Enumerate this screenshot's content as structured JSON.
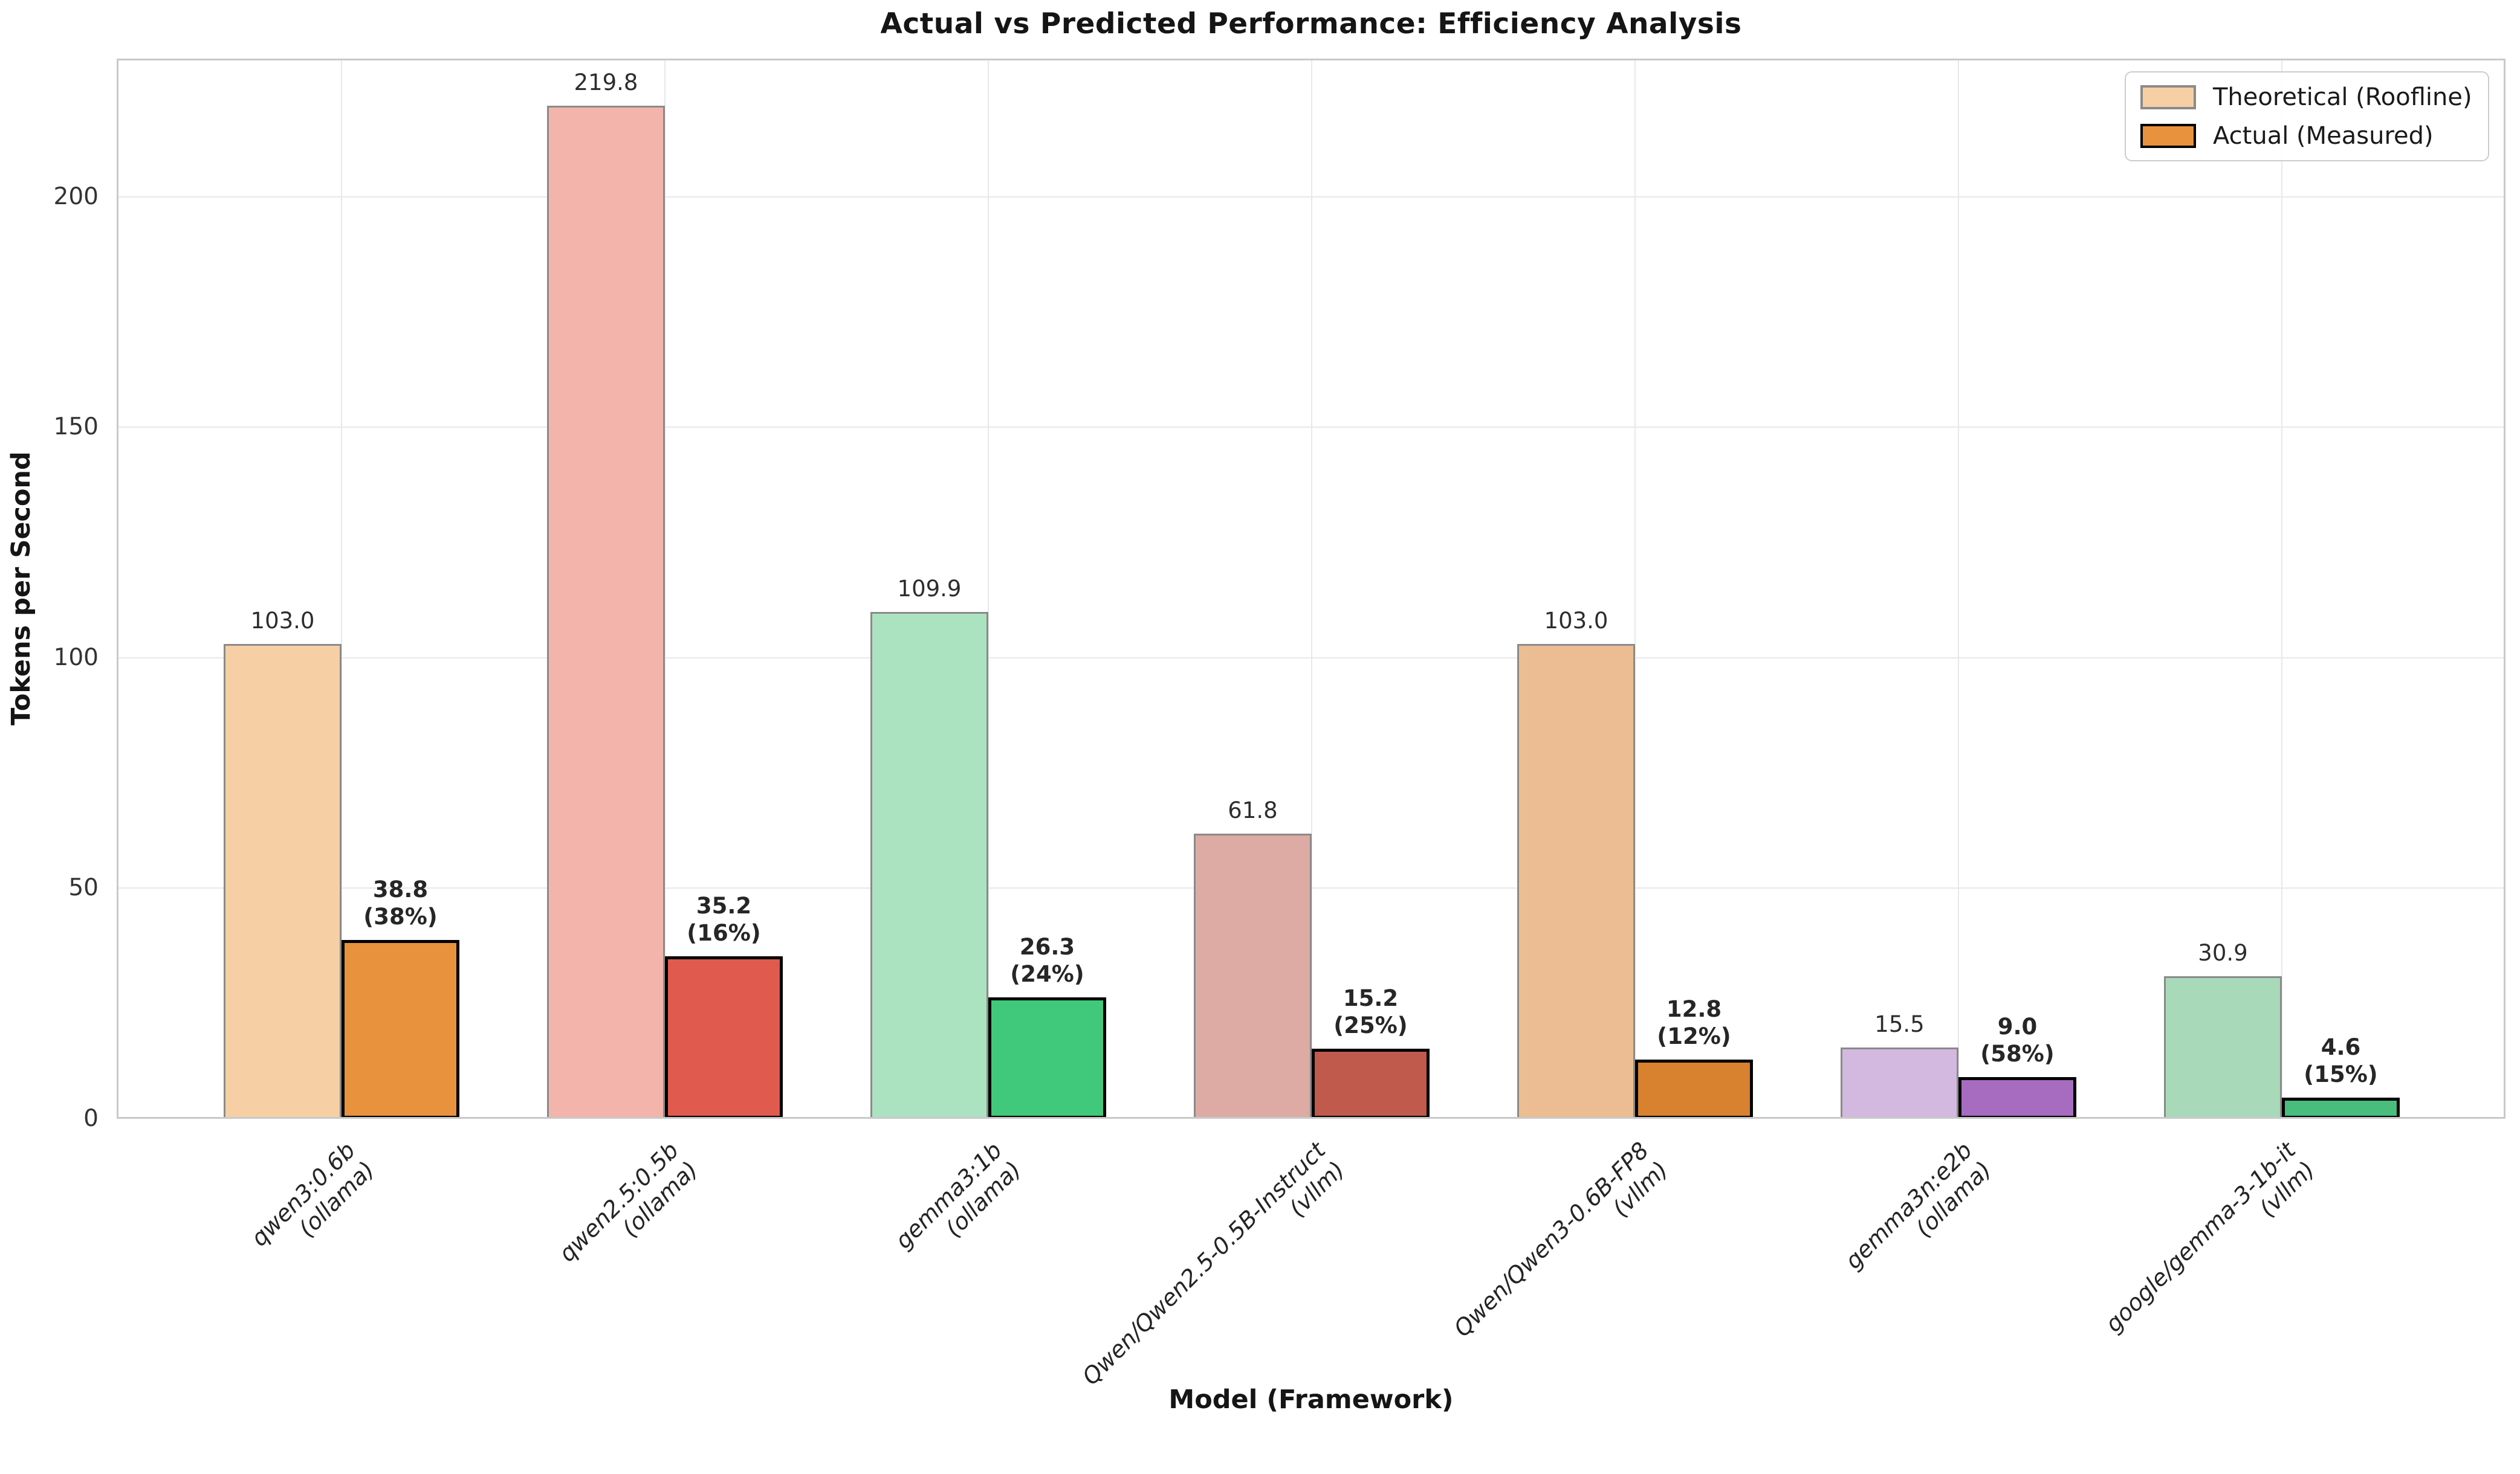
{
  "chart_data": {
    "type": "bar",
    "title": "Actual vs Predicted Performance: Efficiency Analysis",
    "xlabel": "Model (Framework)",
    "ylabel": "Tokens per Second",
    "ylim": [
      0,
      230
    ],
    "yticks": [
      0,
      50,
      100,
      150,
      200
    ],
    "grid": true,
    "legend": {
      "position": "upper right",
      "entries": [
        {
          "label": "Theoretical (Roofline)",
          "fill": "#f6cfa5",
          "edge": "#8a8a8a"
        },
        {
          "label": "Actual (Measured)",
          "fill": "#e8923e",
          "edge": "#000000"
        }
      ]
    },
    "categories": [
      "qwen3:0.6b\n(ollama)",
      "qwen2.5:0.5b\n(ollama)",
      "gemma3:1b\n(ollama)",
      "Qwen/Qwen2.5-0.5B-Instruct\n(vllm)",
      "Qwen/Qwen3-0.6B-FP8\n(vllm)",
      "gemma3n:e2b\n(ollama)",
      "google/gemma-3-1b-it\n(vllm)"
    ],
    "series": [
      {
        "name": "Theoretical (Roofline)",
        "values": [
          103.0,
          219.8,
          109.9,
          61.8,
          103.0,
          15.5,
          30.9
        ]
      },
      {
        "name": "Actual (Measured)",
        "values": [
          38.8,
          35.2,
          26.3,
          15.2,
          12.8,
          9.0,
          4.6
        ]
      }
    ],
    "groups": [
      {
        "model": "qwen3:0.6b",
        "framework": "(ollama)",
        "theoretical": 103.0,
        "theoretical_label": "103.0",
        "actual": 38.8,
        "actual_label": "38.8",
        "efficiency_label": "(38%)",
        "theoretical_color": "#f6cfa5",
        "actual_color": "#e8923e"
      },
      {
        "model": "qwen2.5:0.5b",
        "framework": "(ollama)",
        "theoretical": 219.8,
        "theoretical_label": "219.8",
        "actual": 35.2,
        "actual_label": "35.2",
        "efficiency_label": "(16%)",
        "theoretical_color": "#f3b4ab",
        "actual_color": "#e05a4e"
      },
      {
        "model": "gemma3:1b",
        "framework": "(ollama)",
        "theoretical": 109.9,
        "theoretical_label": "109.9",
        "actual": 26.3,
        "actual_label": "26.3",
        "efficiency_label": "(24%)",
        "theoretical_color": "#abe3c1",
        "actual_color": "#41c97b"
      },
      {
        "model": "Qwen/Qwen2.5-0.5B-Instruct",
        "framework": "(vllm)",
        "theoretical": 61.8,
        "theoretical_label": "61.8",
        "actual": 15.2,
        "actual_label": "15.2",
        "efficiency_label": "(25%)",
        "theoretical_color": "#ddaaa4",
        "actual_color": "#c05a4c"
      },
      {
        "model": "Qwen/Qwen3-0.6B-FP8",
        "framework": "(vllm)",
        "theoretical": 103.0,
        "theoretical_label": "103.0",
        "actual": 12.8,
        "actual_label": "12.8",
        "efficiency_label": "(12%)",
        "theoretical_color": "#ecbd92",
        "actual_color": "#d8812f"
      },
      {
        "model": "gemma3n:e2b",
        "framework": "(ollama)",
        "theoretical": 15.5,
        "theoretical_label": "15.5",
        "actual": 9.0,
        "actual_label": "9.0",
        "efficiency_label": "(58%)",
        "theoretical_color": "#d3b9df",
        "actual_color": "#a76cc0"
      },
      {
        "model": "google/gemma-3-1b-it",
        "framework": "(vllm)",
        "theoretical": 30.9,
        "theoretical_label": "30.9",
        "actual": 4.6,
        "actual_label": "4.6",
        "efficiency_label": "(15%)",
        "theoretical_color": "#a8d9b8",
        "actual_color": "#49bd7d"
      }
    ]
  }
}
